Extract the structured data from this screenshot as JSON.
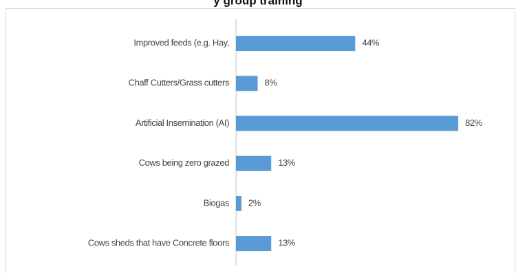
{
  "chart_data": {
    "type": "bar",
    "orientation": "horizontal",
    "title": "y group training",
    "categories": [
      "Improved feeds (e.g. Hay,",
      "Chaff Cutters/Grass cutters",
      "Artificial Insemination (AI)",
      "Cows being zero grazed",
      "Biogas",
      "Cows sheds that have Concrete floors"
    ],
    "values": [
      44,
      8,
      82,
      13,
      2,
      13
    ],
    "value_labels": [
      "44%",
      "8%",
      "82%",
      "13%",
      "2%",
      "13%"
    ],
    "color": "#5b9bd5"
  }
}
